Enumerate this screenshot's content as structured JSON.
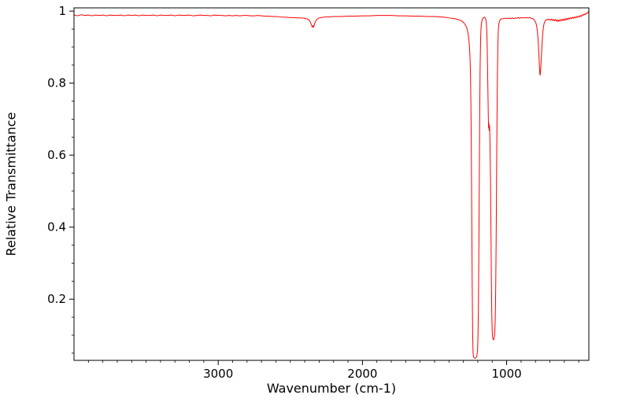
{
  "chart_data": {
    "type": "line",
    "title": "",
    "xlabel": "Wavenumber (cm-1)",
    "ylabel": "Relative Transmittance",
    "x_axis_reversed": true,
    "xlim": [
      4000,
      430
    ],
    "ylim": [
      0.03,
      1.009
    ],
    "x_ticks": [
      3000,
      2000,
      1000
    ],
    "x_tick_labels": [
      "3000",
      "2000",
      "1000"
    ],
    "x_minor_step": 100,
    "y_ticks": [
      0.2,
      0.4,
      0.6,
      0.8,
      1
    ],
    "y_tick_labels": [
      "0.2",
      "0.4",
      "0.6",
      "0.8",
      "1"
    ],
    "y_minor_step": 0.05,
    "grid": false,
    "legend": null,
    "line_color": "#ff0000",
    "axis_color": "#000000",
    "background": "#ffffff",
    "points": [
      [
        4000,
        0.989
      ],
      [
        3975,
        0.987
      ],
      [
        3950,
        0.99
      ],
      [
        3925,
        0.988
      ],
      [
        3900,
        0.989
      ],
      [
        3875,
        0.987
      ],
      [
        3850,
        0.989
      ],
      [
        3825,
        0.988
      ],
      [
        3800,
        0.989
      ],
      [
        3775,
        0.987
      ],
      [
        3750,
        0.989
      ],
      [
        3725,
        0.988
      ],
      [
        3700,
        0.988
      ],
      [
        3675,
        0.989
      ],
      [
        3650,
        0.987
      ],
      [
        3625,
        0.989
      ],
      [
        3600,
        0.988
      ],
      [
        3575,
        0.989
      ],
      [
        3550,
        0.987
      ],
      [
        3525,
        0.989
      ],
      [
        3500,
        0.988
      ],
      [
        3475,
        0.988
      ],
      [
        3450,
        0.989
      ],
      [
        3425,
        0.987
      ],
      [
        3400,
        0.989
      ],
      [
        3375,
        0.988
      ],
      [
        3350,
        0.988
      ],
      [
        3325,
        0.989
      ],
      [
        3300,
        0.987
      ],
      [
        3275,
        0.989
      ],
      [
        3250,
        0.988
      ],
      [
        3225,
        0.988
      ],
      [
        3200,
        0.989
      ],
      [
        3175,
        0.987
      ],
      [
        3150,
        0.988
      ],
      [
        3125,
        0.989
      ],
      [
        3100,
        0.988
      ],
      [
        3075,
        0.988
      ],
      [
        3050,
        0.987
      ],
      [
        3025,
        0.989
      ],
      [
        3000,
        0.988
      ],
      [
        2975,
        0.988
      ],
      [
        2950,
        0.987
      ],
      [
        2925,
        0.988
      ],
      [
        2900,
        0.987
      ],
      [
        2875,
        0.988
      ],
      [
        2850,
        0.987
      ],
      [
        2825,
        0.988
      ],
      [
        2800,
        0.988
      ],
      [
        2775,
        0.987
      ],
      [
        2750,
        0.987
      ],
      [
        2725,
        0.988
      ],
      [
        2700,
        0.987
      ],
      [
        2675,
        0.986
      ],
      [
        2650,
        0.986
      ],
      [
        2625,
        0.985
      ],
      [
        2600,
        0.985
      ],
      [
        2575,
        0.984
      ],
      [
        2550,
        0.983
      ],
      [
        2525,
        0.983
      ],
      [
        2500,
        0.982
      ],
      [
        2475,
        0.982
      ],
      [
        2450,
        0.981
      ],
      [
        2425,
        0.981
      ],
      [
        2400,
        0.98
      ],
      [
        2390,
        0.979
      ],
      [
        2380,
        0.978
      ],
      [
        2370,
        0.975
      ],
      [
        2360,
        0.969
      ],
      [
        2352,
        0.959
      ],
      [
        2346,
        0.955
      ],
      [
        2342,
        0.96
      ],
      [
        2338,
        0.956
      ],
      [
        2332,
        0.965
      ],
      [
        2325,
        0.972
      ],
      [
        2315,
        0.977
      ],
      [
        2305,
        0.98
      ],
      [
        2290,
        0.982
      ],
      [
        2270,
        0.983
      ],
      [
        2250,
        0.984
      ],
      [
        2225,
        0.984
      ],
      [
        2200,
        0.985
      ],
      [
        2150,
        0.985
      ],
      [
        2100,
        0.986
      ],
      [
        2050,
        0.986
      ],
      [
        2000,
        0.987
      ],
      [
        1950,
        0.987
      ],
      [
        1900,
        0.988
      ],
      [
        1850,
        0.988
      ],
      [
        1800,
        0.988
      ],
      [
        1750,
        0.987
      ],
      [
        1700,
        0.987
      ],
      [
        1650,
        0.986
      ],
      [
        1600,
        0.986
      ],
      [
        1550,
        0.985
      ],
      [
        1500,
        0.985
      ],
      [
        1460,
        0.984
      ],
      [
        1430,
        0.983
      ],
      [
        1400,
        0.981
      ],
      [
        1380,
        0.98
      ],
      [
        1360,
        0.979
      ],
      [
        1340,
        0.977
      ],
      [
        1325,
        0.975
      ],
      [
        1310,
        0.972
      ],
      [
        1300,
        0.969
      ],
      [
        1292,
        0.965
      ],
      [
        1285,
        0.961
      ],
      [
        1278,
        0.955
      ],
      [
        1272,
        0.947
      ],
      [
        1266,
        0.934
      ],
      [
        1260,
        0.913
      ],
      [
        1255,
        0.88
      ],
      [
        1251,
        0.83
      ],
      [
        1248,
        0.75
      ],
      [
        1245,
        0.62
      ],
      [
        1242,
        0.44
      ],
      [
        1239,
        0.25
      ],
      [
        1236,
        0.11
      ],
      [
        1233,
        0.052
      ],
      [
        1230,
        0.04
      ],
      [
        1226,
        0.037
      ],
      [
        1222,
        0.036
      ],
      [
        1218,
        0.036
      ],
      [
        1214,
        0.037
      ],
      [
        1210,
        0.039
      ],
      [
        1206,
        0.044
      ],
      [
        1202,
        0.056
      ],
      [
        1199,
        0.09
      ],
      [
        1196,
        0.165
      ],
      [
        1193,
        0.315
      ],
      [
        1190,
        0.51
      ],
      [
        1187,
        0.7
      ],
      [
        1184,
        0.84
      ],
      [
        1181,
        0.915
      ],
      [
        1178,
        0.95
      ],
      [
        1175,
        0.965
      ],
      [
        1171,
        0.974
      ],
      [
        1166,
        0.979
      ],
      [
        1160,
        0.982
      ],
      [
        1154,
        0.983
      ],
      [
        1149,
        0.982
      ],
      [
        1145,
        0.978
      ],
      [
        1141,
        0.968
      ],
      [
        1138,
        0.948
      ],
      [
        1135,
        0.905
      ],
      [
        1132,
        0.835
      ],
      [
        1129,
        0.755
      ],
      [
        1127,
        0.705
      ],
      [
        1125,
        0.675
      ],
      [
        1123,
        0.688
      ],
      [
        1121,
        0.668
      ],
      [
        1119,
        0.682
      ],
      [
        1117,
        0.665
      ],
      [
        1115,
        0.62
      ],
      [
        1112,
        0.53
      ],
      [
        1109,
        0.4
      ],
      [
        1106,
        0.26
      ],
      [
        1103,
        0.16
      ],
      [
        1100,
        0.11
      ],
      [
        1097,
        0.094
      ],
      [
        1094,
        0.089
      ],
      [
        1091,
        0.087
      ],
      [
        1088,
        0.09
      ],
      [
        1085,
        0.096
      ],
      [
        1082,
        0.11
      ],
      [
        1079,
        0.145
      ],
      [
        1076,
        0.225
      ],
      [
        1073,
        0.355
      ],
      [
        1070,
        0.525
      ],
      [
        1067,
        0.695
      ],
      [
        1064,
        0.825
      ],
      [
        1061,
        0.905
      ],
      [
        1058,
        0.945
      ],
      [
        1055,
        0.962
      ],
      [
        1051,
        0.97
      ],
      [
        1046,
        0.975
      ],
      [
        1040,
        0.978
      ],
      [
        1030,
        0.979
      ],
      [
        1020,
        0.979
      ],
      [
        1010,
        0.98
      ],
      [
        1000,
        0.98
      ],
      [
        990,
        0.979
      ],
      [
        980,
        0.981
      ],
      [
        970,
        0.979
      ],
      [
        960,
        0.981
      ],
      [
        950,
        0.979
      ],
      [
        940,
        0.981
      ],
      [
        930,
        0.98
      ],
      [
        920,
        0.982
      ],
      [
        910,
        0.98
      ],
      [
        900,
        0.982
      ],
      [
        890,
        0.981
      ],
      [
        880,
        0.982
      ],
      [
        870,
        0.981
      ],
      [
        860,
        0.982
      ],
      [
        850,
        0.981
      ],
      [
        840,
        0.982
      ],
      [
        830,
        0.98
      ],
      [
        820,
        0.979
      ],
      [
        812,
        0.977
      ],
      [
        806,
        0.974
      ],
      [
        800,
        0.97
      ],
      [
        795,
        0.964
      ],
      [
        790,
        0.954
      ],
      [
        786,
        0.941
      ],
      [
        782,
        0.921
      ],
      [
        778,
        0.893
      ],
      [
        775,
        0.867
      ],
      [
        772,
        0.842
      ],
      [
        770,
        0.828
      ],
      [
        768,
        0.822
      ],
      [
        766,
        0.828
      ],
      [
        763,
        0.845
      ],
      [
        760,
        0.868
      ],
      [
        756,
        0.898
      ],
      [
        752,
        0.925
      ],
      [
        748,
        0.945
      ],
      [
        744,
        0.958
      ],
      [
        740,
        0.966
      ],
      [
        735,
        0.971
      ],
      [
        728,
        0.975
      ],
      [
        720,
        0.977
      ],
      [
        712,
        0.976
      ],
      [
        705,
        0.978
      ],
      [
        698,
        0.975
      ],
      [
        691,
        0.978
      ],
      [
        684,
        0.974
      ],
      [
        677,
        0.977
      ],
      [
        670,
        0.973
      ],
      [
        663,
        0.977
      ],
      [
        656,
        0.972
      ],
      [
        650,
        0.976
      ],
      [
        643,
        0.971
      ],
      [
        637,
        0.976
      ],
      [
        630,
        0.972
      ],
      [
        623,
        0.977
      ],
      [
        616,
        0.973
      ],
      [
        610,
        0.978
      ],
      [
        603,
        0.974
      ],
      [
        596,
        0.979
      ],
      [
        590,
        0.975
      ],
      [
        583,
        0.98
      ],
      [
        576,
        0.976
      ],
      [
        570,
        0.981
      ],
      [
        563,
        0.978
      ],
      [
        556,
        0.982
      ],
      [
        550,
        0.979
      ],
      [
        543,
        0.983
      ],
      [
        536,
        0.98
      ],
      [
        530,
        0.984
      ],
      [
        523,
        0.981
      ],
      [
        516,
        0.985
      ],
      [
        510,
        0.982
      ],
      [
        503,
        0.986
      ],
      [
        496,
        0.984
      ],
      [
        490,
        0.988
      ],
      [
        483,
        0.985
      ],
      [
        476,
        0.99
      ],
      [
        470,
        0.988
      ],
      [
        463,
        0.992
      ],
      [
        456,
        0.99
      ],
      [
        450,
        0.994
      ],
      [
        443,
        0.993
      ],
      [
        436,
        0.997
      ],
      [
        430,
        1.0
      ]
    ]
  }
}
